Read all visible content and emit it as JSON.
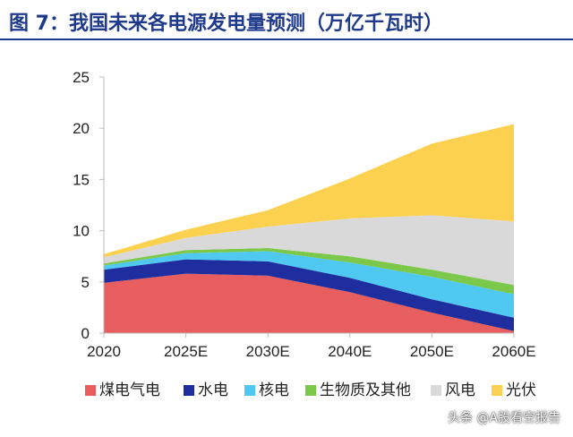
{
  "header": {
    "title": "图 7：我国未来各电源发电量预测（万亿千瓦时）"
  },
  "watermark": "头条 @A股看空报告",
  "colors": {
    "coal_gas": "#e85d5d",
    "hydro": "#1f2e9e",
    "nuclear": "#4fc8f2",
    "bio_other": "#7cc84a",
    "wind": "#d9d9d9",
    "solar": "#fcd14f",
    "axis": "#bbbbbb",
    "title": "#1f3a8a"
  },
  "chart_data": {
    "type": "area",
    "stacked": true,
    "title": "图 7：我国未来各电源发电量预测（万亿千瓦时）",
    "categories": [
      "2020",
      "2025E",
      "2030E",
      "2040E",
      "2050E",
      "2060E"
    ],
    "ylim": [
      0,
      25
    ],
    "yticks": [
      "0",
      "5",
      "10",
      "15",
      "20",
      "25"
    ],
    "ytick_values": [
      0,
      5,
      10,
      15,
      20,
      25
    ],
    "legend_position": "bottom",
    "series": [
      {
        "name": "煤电气电",
        "key": "coal_gas",
        "values": [
          4.9,
          5.8,
          5.6,
          4.0,
          2.0,
          0.2
        ]
      },
      {
        "name": "水电",
        "key": "hydro",
        "values": [
          1.3,
          1.4,
          1.4,
          1.4,
          1.3,
          1.3
        ]
      },
      {
        "name": "核电",
        "key": "nuclear",
        "values": [
          0.4,
          0.6,
          1.0,
          1.5,
          2.2,
          2.3
        ]
      },
      {
        "name": "生物质及其他",
        "key": "bio_other",
        "values": [
          0.2,
          0.3,
          0.3,
          0.6,
          0.7,
          0.9
        ]
      },
      {
        "name": "风电",
        "key": "wind",
        "values": [
          0.6,
          1.2,
          2.1,
          3.7,
          5.3,
          6.2
        ]
      },
      {
        "name": "光伏",
        "key": "solar",
        "values": [
          0.3,
          0.8,
          1.6,
          3.9,
          7.0,
          9.5
        ]
      }
    ]
  }
}
